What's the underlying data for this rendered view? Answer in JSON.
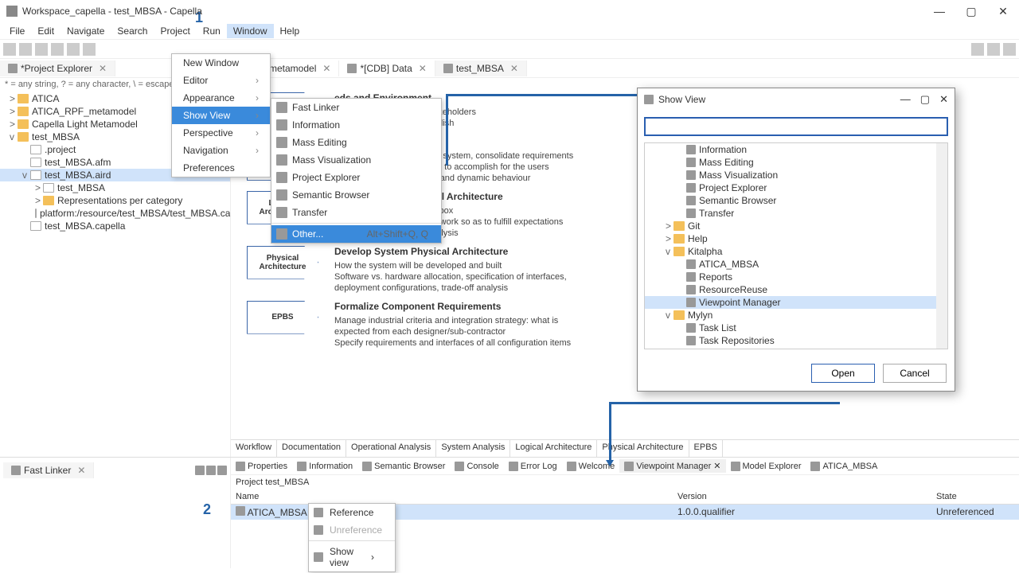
{
  "annotations": {
    "one": "1",
    "two": "2"
  },
  "window": {
    "title": "Workspace_capella - test_MBSA - Capella"
  },
  "menubar": [
    "File",
    "Edit",
    "Navigate",
    "Search",
    "Project",
    "Run",
    "Window",
    "Help"
  ],
  "windowMenu": {
    "items": [
      {
        "label": "New Window"
      },
      {
        "label": "Editor",
        "submenu": true
      },
      {
        "label": "Appearance",
        "submenu": true
      },
      {
        "label": "Show View",
        "submenu": true,
        "highlight": true
      },
      {
        "label": "Perspective",
        "submenu": true
      },
      {
        "label": "Navigation",
        "submenu": true
      },
      {
        "label": "Preferences"
      }
    ]
  },
  "showViewSubmenu": {
    "items": [
      {
        "label": "Fast Linker"
      },
      {
        "label": "Information"
      },
      {
        "label": "Mass Editing"
      },
      {
        "label": "Mass Visualization"
      },
      {
        "label": "Project Explorer"
      },
      {
        "label": "Semantic Browser"
      },
      {
        "label": "Transfer"
      },
      {
        "label": "Other...",
        "shortcut": "Alt+Shift+Q, Q",
        "highlight": true
      }
    ]
  },
  "projectExplorer": {
    "tabTitle": "*Project Explorer",
    "filterHint": "* = any string, ? = any character, \\ = escape fo",
    "tree": [
      {
        "exp": ">",
        "icon": "folder",
        "label": "ATICA",
        "d": 1
      },
      {
        "exp": ">",
        "icon": "folder",
        "label": "ATICA_RPF_metamodel",
        "d": 1
      },
      {
        "exp": ">",
        "icon": "folder",
        "label": "Capella Light Metamodel",
        "d": 1
      },
      {
        "exp": "v",
        "icon": "folder",
        "label": "test_MBSA",
        "d": 1
      },
      {
        "exp": "",
        "icon": "file",
        "label": ".project",
        "d": 2
      },
      {
        "exp": "",
        "icon": "file",
        "label": "test_MBSA.afm",
        "d": 2
      },
      {
        "exp": "v",
        "icon": "file",
        "label": "test_MBSA.aird",
        "d": 2,
        "selected": true
      },
      {
        "exp": ">",
        "icon": "file",
        "label": "test_MBSA",
        "d": 3
      },
      {
        "exp": ">",
        "icon": "folder",
        "label": "Representations per category",
        "d": 3
      },
      {
        "exp": "",
        "icon": "file",
        "label": "platform:/resource/test_MBSA/test_MBSA.capell...",
        "d": 3
      },
      {
        "exp": "",
        "icon": "file",
        "label": "test_MBSA.capella",
        "d": 2
      }
    ]
  },
  "editorTabs": [
    {
      "label": "PF_metamodel"
    },
    {
      "label": "*[CDB] Data"
    },
    {
      "label": "test_MBSA",
      "active": true
    }
  ],
  "workflow": {
    "sections": [
      {
        "shape": "",
        "title": "eds and Environment",
        "body": "operational needs from stakeholders\nthe system have to accomplish\noles, activities, concepts"
      },
      {
        "shape": "System Analysis",
        "title": "",
        "body": "Identify the boundary of the system, consolidate requirements\nDefine what the system has to accomplish for the users\nModel functional dataflows and dynamic behaviour"
      },
      {
        "shape": "Logical Architecture",
        "title": "Develop System Logical Architecture",
        "body": "See the system as a white box\nDefine how the system will work so as to fulfill expectations\nPerform a first trade-off analysis"
      },
      {
        "shape": "Physical Architecture",
        "title": "Develop System Physical Architecture",
        "body": "How the system will be developed and built\nSoftware vs. hardware allocation, specification of interfaces,\ndeployment configurations, trade-off analysis"
      },
      {
        "shape": "EPBS",
        "title": "Formalize Component Requirements",
        "body": "Manage industrial criteria and integration strategy: what is\nexpected from each designer/sub-contractor\nSpecify requirements and interfaces of all configuration items"
      }
    ],
    "tabs": [
      "Workflow",
      "Documentation",
      "Operational Analysis",
      "System Analysis",
      "Logical Architecture",
      "Physical Architecture",
      "EPBS"
    ]
  },
  "fastLinker": {
    "tabTitle": "Fast Linker"
  },
  "bottomViews": [
    "Properties",
    "Information",
    "Semantic Browser",
    "Console",
    "Error Log",
    "Welcome",
    "Viewpoint Manager",
    "Model Explorer",
    "ATICA_MBSA"
  ],
  "viewpointMgr": {
    "projectLabel": "Project test_MBSA",
    "columns": {
      "name": "Name",
      "version": "Version",
      "state": "State"
    },
    "row": {
      "name": "ATICA_MBSA",
      "version": "1.0.0.qualifier",
      "state": "Unreferenced"
    }
  },
  "contextMenu": {
    "items": [
      {
        "label": "Reference"
      },
      {
        "label": "Unreference",
        "disabled": true
      },
      {
        "label": "Show view",
        "submenu": true
      }
    ]
  },
  "showViewDialog": {
    "title": "Show View",
    "tree": [
      {
        "d": 1,
        "label": "Information"
      },
      {
        "d": 1,
        "label": "Mass Editing"
      },
      {
        "d": 1,
        "label": "Mass Visualization"
      },
      {
        "d": 1,
        "label": "Project Explorer"
      },
      {
        "d": 1,
        "label": "Semantic Browser"
      },
      {
        "d": 1,
        "label": "Transfer"
      },
      {
        "d": 0,
        "exp": ">",
        "icon": "folder",
        "label": "Git"
      },
      {
        "d": 0,
        "exp": ">",
        "icon": "folder",
        "label": "Help"
      },
      {
        "d": 0,
        "exp": "v",
        "icon": "folder",
        "label": "Kitalpha"
      },
      {
        "d": 1,
        "label": "ATICA_MBSA"
      },
      {
        "d": 1,
        "label": "Reports"
      },
      {
        "d": 1,
        "label": "ResourceReuse"
      },
      {
        "d": 1,
        "label": "Viewpoint Manager",
        "selected": true
      },
      {
        "d": 0,
        "exp": "v",
        "icon": "folder",
        "label": "Mylyn"
      },
      {
        "d": 1,
        "label": "Task List"
      },
      {
        "d": 1,
        "label": "Task Repositories"
      }
    ],
    "buttons": {
      "open": "Open",
      "cancel": "Cancel"
    }
  }
}
